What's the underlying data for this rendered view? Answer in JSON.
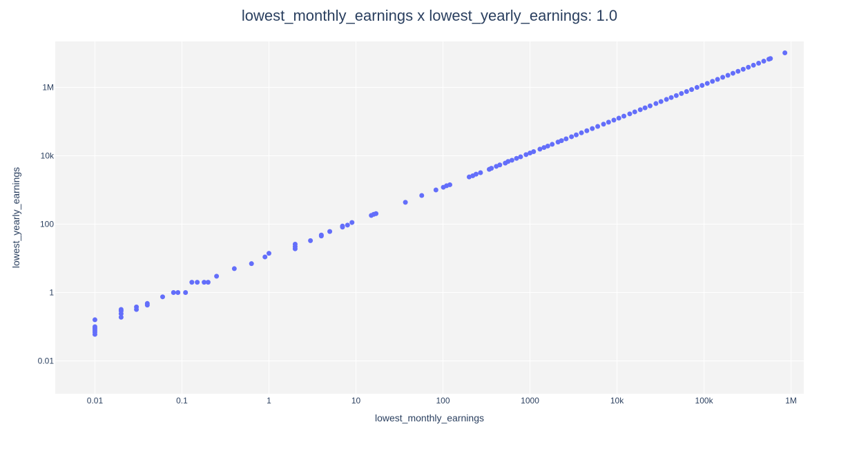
{
  "chart_data": {
    "type": "scatter",
    "title": "lowest_monthly_earnings x lowest_yearly_earnings: 1.0",
    "xlabel": "lowest_monthly_earnings",
    "ylabel": "lowest_yearly_earnings",
    "x_scale": "log",
    "y_scale": "log",
    "xlim": [
      0.0035,
      1400000
    ],
    "ylim": [
      0.0011,
      22000000
    ],
    "grid": true,
    "series_color": "#636efa",
    "plot_background": "#f3f3f3",
    "x_ticks": [
      {
        "value": 0.01,
        "label": "0.01"
      },
      {
        "value": 0.1,
        "label": "0.1"
      },
      {
        "value": 1,
        "label": "1"
      },
      {
        "value": 10,
        "label": "10"
      },
      {
        "value": 100,
        "label": "100"
      },
      {
        "value": 1000,
        "label": "1000"
      },
      {
        "value": 10000,
        "label": "10k"
      },
      {
        "value": 100000,
        "label": "100k"
      },
      {
        "value": 1000000,
        "label": "1M"
      }
    ],
    "y_ticks": [
      {
        "value": 0.01,
        "label": "0.01"
      },
      {
        "value": 1,
        "label": "1"
      },
      {
        "value": 100,
        "label": "100"
      },
      {
        "value": 10000,
        "label": "10k"
      },
      {
        "value": 1000000,
        "label": "1M"
      }
    ],
    "points": [
      [
        0.01,
        0.06
      ],
      [
        0.01,
        0.07
      ],
      [
        0.01,
        0.08
      ],
      [
        0.01,
        0.09
      ],
      [
        0.01,
        0.1
      ],
      [
        0.01,
        0.16
      ],
      [
        0.02,
        0.19
      ],
      [
        0.02,
        0.24
      ],
      [
        0.02,
        0.29
      ],
      [
        0.02,
        0.32
      ],
      [
        0.03,
        0.32
      ],
      [
        0.03,
        0.38
      ],
      [
        0.04,
        0.43
      ],
      [
        0.04,
        0.48
      ],
      [
        0.06,
        0.75
      ],
      [
        0.08,
        1.0
      ],
      [
        0.09,
        1.0
      ],
      [
        0.11,
        1.0
      ],
      [
        0.13,
        2.0
      ],
      [
        0.15,
        2.0
      ],
      [
        0.18,
        2.0
      ],
      [
        0.2,
        2.0
      ],
      [
        0.25,
        3.0
      ],
      [
        0.4,
        5.0
      ],
      [
        0.63,
        7.0
      ],
      [
        0.9,
        11.0
      ],
      [
        1.0,
        14.0
      ],
      [
        2.0,
        19.0
      ],
      [
        2.0,
        22.0
      ],
      [
        2.0,
        26.0
      ],
      [
        3.0,
        33.0
      ],
      [
        4.0,
        45.0
      ],
      [
        4.0,
        48.0
      ],
      [
        5.0,
        61.0
      ],
      [
        7.0,
        82.0
      ],
      [
        7.0,
        88.0
      ],
      [
        8.0,
        94.0
      ],
      [
        9.0,
        112.0
      ],
      [
        15.0,
        180.0
      ],
      [
        16.0,
        194.0
      ],
      [
        17.0,
        203.0
      ],
      [
        37.0,
        435.0
      ],
      [
        57.0,
        690.0
      ],
      [
        83.0,
        1000.0
      ],
      [
        101.0,
        1200.0
      ],
      [
        110.0,
        1330.0
      ],
      [
        120.0,
        1420.0
      ],
      [
        200.0,
        2400.0
      ],
      [
        220.0,
        2600.0
      ],
      [
        240.0,
        2900.0
      ],
      [
        270.0,
        3200.0
      ],
      [
        340.0,
        4000.0
      ],
      [
        360.0,
        4300.0
      ],
      [
        410.0,
        4900.0
      ],
      [
        450.0,
        5400.0
      ],
      [
        520.0,
        6100.0
      ],
      [
        560.0,
        6800.0
      ],
      [
        620.0,
        7400.0
      ],
      [
        700.0,
        8400.0
      ],
      [
        780.0,
        9300.0
      ],
      [
        900.0,
        10800.0
      ],
      [
        1000.0,
        12000.0
      ],
      [
        1100.0,
        13200.0
      ],
      [
        1300.0,
        15600.0
      ],
      [
        1450.0,
        17400.0
      ],
      [
        1600.0,
        19200.0
      ],
      [
        1800.0,
        21600.0
      ],
      [
        2100.0,
        25200.0
      ],
      [
        2300.0,
        27600.0
      ],
      [
        2600.0,
        31200.0
      ],
      [
        3000.0,
        36000.0
      ],
      [
        3400.0,
        40800.0
      ],
      [
        3900.0,
        46800.0
      ],
      [
        4500.0,
        54000.0
      ],
      [
        5200.0,
        62400.0
      ],
      [
        6000.0,
        72000.0
      ],
      [
        7000.0,
        84000.0
      ],
      [
        8000.0,
        96000.0
      ],
      [
        9200.0,
        110400.0
      ],
      [
        10500.0,
        126000.0
      ],
      [
        12000.0,
        144000.0
      ],
      [
        14000.0,
        168000.0
      ],
      [
        16000.0,
        192000.0
      ],
      [
        18500.0,
        222000.0
      ],
      [
        21000.0,
        252000.0
      ],
      [
        24000.0,
        288000.0
      ],
      [
        28000.0,
        336000.0
      ],
      [
        32000.0,
        384000.0
      ],
      [
        37000.0,
        444000.0
      ],
      [
        42000.0,
        504000.0
      ],
      [
        48000.0,
        576000.0
      ],
      [
        55000.0,
        660000.0
      ],
      [
        63000.0,
        756000.0
      ],
      [
        72000.0,
        864000.0
      ],
      [
        83000.0,
        996000.0
      ],
      [
        95000.0,
        1140000.0
      ],
      [
        109000.0,
        1308000.0
      ],
      [
        125000.0,
        1500000.0
      ],
      [
        143000.0,
        1716000.0
      ],
      [
        164000.0,
        1968000.0
      ],
      [
        188000.0,
        2256000.0
      ],
      [
        215000.0,
        2580000.0
      ],
      [
        246000.0,
        2952000.0
      ],
      [
        282000.0,
        3384000.0
      ],
      [
        323000.0,
        3876000.0
      ],
      [
        370000.0,
        4440000.0
      ],
      [
        424000.0,
        5088000.0
      ],
      [
        486000.0,
        5832000.0
      ],
      [
        557000.0,
        6684000.0
      ],
      [
        580000.0,
        6960000.0
      ],
      [
        850000.0,
        10200000.0
      ]
    ]
  }
}
